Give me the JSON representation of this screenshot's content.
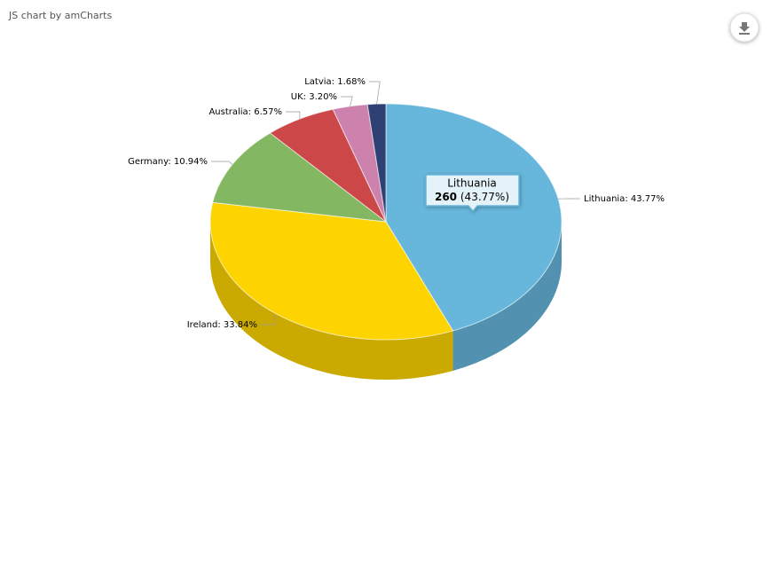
{
  "credit": "JS chart by amCharts",
  "chart_data": {
    "type": "pie3d",
    "categories": [
      "Lithuania",
      "Ireland",
      "Germany",
      "Australia",
      "UK",
      "Latvia"
    ],
    "values": [
      43.77,
      33.84,
      10.94,
      6.57,
      3.2,
      1.68
    ],
    "value_labels": [
      "Lithuania: 43.77%",
      "Ireland: 33.84%",
      "Germany: 10.94%",
      "Australia: 6.57%",
      "UK: 3.20%",
      "Latvia: 1.68%"
    ],
    "colors": [
      "#67b7dc",
      "#fdd400",
      "#84b761",
      "#cc4748",
      "#cd82ad",
      "#2f4074"
    ],
    "tooltip": {
      "title": "Lithuania",
      "value": 260,
      "percent_label": "(43.77%)"
    }
  }
}
